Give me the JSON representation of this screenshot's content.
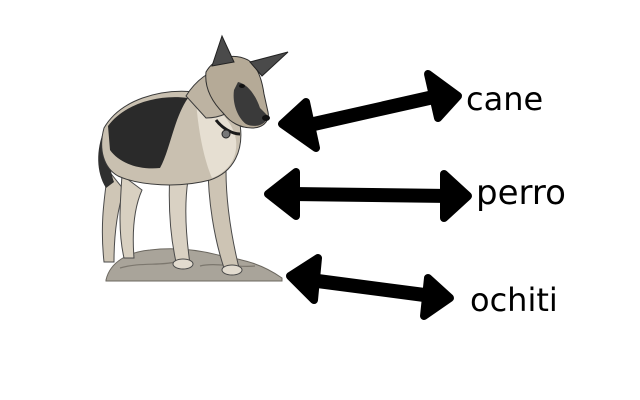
{
  "words": [
    {
      "text": "cane"
    },
    {
      "text": "perro"
    },
    {
      "text": "ochiti"
    }
  ],
  "colors": {
    "ink": "#000000",
    "background": "#ffffff",
    "dog_tan": "#c9c0b0",
    "dog_dark": "#2a2a2a",
    "rock": "#a9a49a"
  },
  "icons": {
    "picture": "german-shepherd-dog-on-rock",
    "arrows": "double-headed-arrow"
  }
}
